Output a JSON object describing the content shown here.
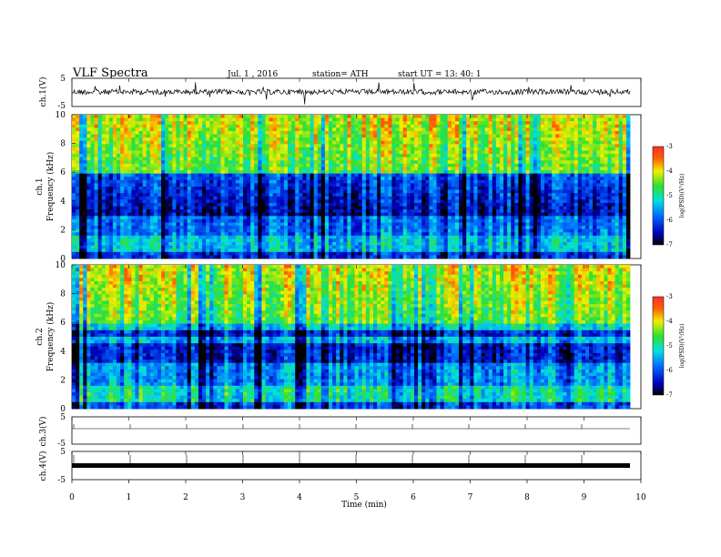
{
  "header": {
    "title": "VLF  Spectra",
    "date": "Jul.  1  , 2016",
    "station": "station= ATH",
    "start": "start  UT  =   13: 40: 1"
  },
  "chart_data": [
    {
      "type": "line",
      "panel": "ch1-waveform",
      "ylabel": "ch.1(V)",
      "ylim": [
        -5,
        5
      ],
      "yticks": [
        "5",
        "-5"
      ]
    },
    {
      "type": "heatmap",
      "panel": "ch1-spectrogram",
      "ylabel": "ch.1\nFrequency  (kHz)",
      "ylabel_line1": "ch.1",
      "ylabel_line2": "Frequency  (kHz)",
      "ylim": [
        0,
        10
      ],
      "yticks": [
        "0",
        "2",
        "4",
        "6",
        "8",
        "10"
      ],
      "colorbar": {
        "label": "log(PSD)(V²/Hz)",
        "range": [
          -7,
          -3
        ],
        "ticks": [
          "-3",
          "-4",
          "-5",
          "-6",
          "-7"
        ]
      }
    },
    {
      "type": "heatmap",
      "panel": "ch2-spectrogram",
      "ylabel_line1": "ch.2",
      "ylabel_line2": "Frequency  (kHz)",
      "ylim": [
        0,
        10
      ],
      "yticks": [
        "0",
        "2",
        "4",
        "6",
        "8",
        "10"
      ],
      "colorbar": {
        "label": "log(PSD)(V²/Hz)",
        "range": [
          -7,
          -3
        ],
        "ticks": [
          "-3",
          "-4",
          "-5",
          "-6",
          "-7"
        ]
      }
    },
    {
      "type": "line",
      "panel": "ch3-waveform",
      "ylabel": "ch.3(V)",
      "ylim": [
        -5,
        5
      ],
      "yticks": [
        "5",
        "-5"
      ]
    },
    {
      "type": "line",
      "panel": "ch4-waveform",
      "ylabel": "ch.4(V)",
      "ylim": [
        -5,
        5
      ],
      "yticks": [
        "5",
        "-5"
      ]
    }
  ],
  "xaxis": {
    "label": "Time  (min)",
    "xlim": [
      0,
      10
    ],
    "ticks": [
      "0",
      "1",
      "2",
      "3",
      "4",
      "5",
      "6",
      "7",
      "8",
      "9",
      "10"
    ]
  },
  "colors": {
    "low": "#000033",
    "mid": "#00c8ff",
    "high": "#ff0000"
  }
}
